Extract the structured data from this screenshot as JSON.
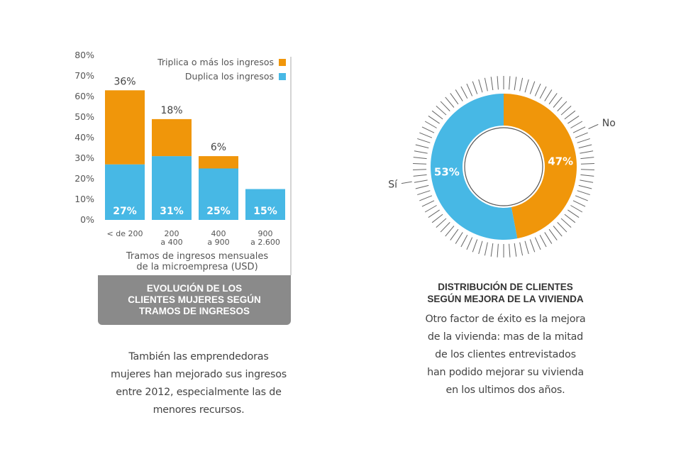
{
  "colors": {
    "orange": "#F0960A",
    "blue": "#47B8E5",
    "caption_bg": "#8a8a8a",
    "text": "#444444",
    "axis": "#aaaaaa"
  },
  "chart_data": [
    {
      "type": "bar",
      "stacked": true,
      "y_ticks": [
        "80%",
        "70%",
        "60%",
        "50%",
        "40%",
        "30%",
        "20%",
        "10%",
        "0%"
      ],
      "ylim": [
        0,
        80
      ],
      "categories": [
        [
          "< de 200"
        ],
        [
          "200",
          "a 400"
        ],
        [
          "400",
          "a 900"
        ],
        [
          "900",
          "a 2.600"
        ]
      ],
      "series": [
        {
          "name": "Duplica los ingresos",
          "color": "#47B8E5",
          "values": [
            27,
            31,
            25,
            15
          ]
        },
        {
          "name": "Triplica o más los ingresos",
          "color": "#F0960A",
          "values": [
            36,
            18,
            6,
            0
          ]
        }
      ],
      "bottom_labels": [
        "27%",
        "31%",
        "25%",
        "15%"
      ],
      "top_labels": [
        "36%",
        "18%",
        "6%",
        ""
      ],
      "legend": [
        {
          "label": "Triplica o más los ingresos",
          "color": "#F0960A"
        },
        {
          "label": "Duplica los ingresos",
          "color": "#47B8E5"
        }
      ],
      "xlabel": [
        "Tramos de ingresos mensuales",
        "de la microempresa (USD)"
      ],
      "title": [
        "EVOLUCIÓN DE LOS",
        "CLIENTES MUJERES SEGÚN",
        "TRAMOS DE INGRESOS"
      ],
      "description": [
        "También las emprendedoras",
        "mujeres han mejorado sus ingresos",
        "entre 2012, especialmente las de",
        "menores recursos."
      ]
    },
    {
      "type": "pie",
      "donut": true,
      "slices": [
        {
          "label": "No",
          "value": 47,
          "value_label": "47%",
          "color": "#F0960A"
        },
        {
          "label": "Sí",
          "value": 53,
          "value_label": "53%",
          "color": "#47B8E5"
        }
      ],
      "title": [
        "DISTRIBUCIÓN DE CLIENTES",
        "SEGÚN MEJORA DE LA VIVIENDA"
      ],
      "description": [
        "Otro factor de éxito es la mejora",
        "de la vivienda: mas de la mitad",
        "de los clientes entrevistados",
        "han podido mejorar su vivienda",
        "en los ultimos dos años."
      ]
    }
  ]
}
